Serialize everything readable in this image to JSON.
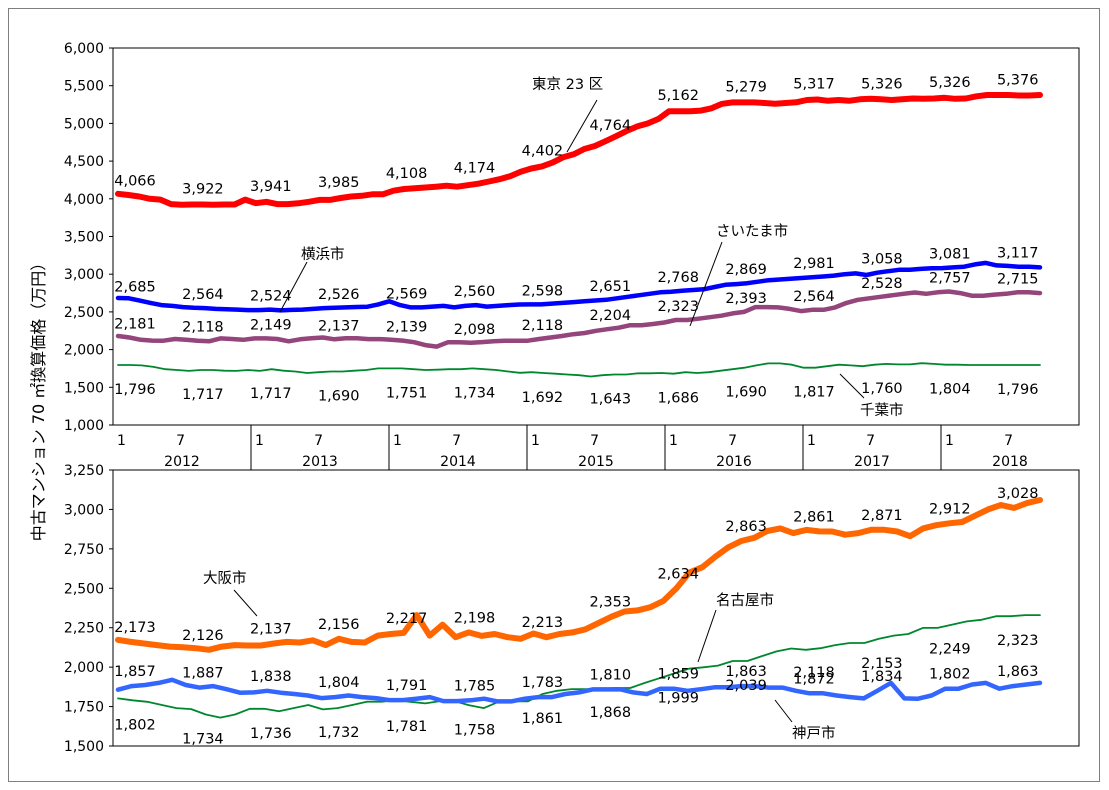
{
  "chart_data": [
    {
      "type": "line",
      "ylabel": "中古マンション 70 ㎡換算価格（万円）",
      "ylim": [
        1000,
        6000
      ],
      "y_ticks": [
        "1,000",
        "1,500",
        "2,000",
        "2,500",
        "3,000",
        "3,500",
        "4,000",
        "4,500",
        "5,000",
        "5,500",
        "6,000"
      ],
      "series": [
        {
          "name": "東京 23 区",
          "color": "#ff0000",
          "width": 6,
          "values": [
            4066,
            4050,
            4030,
            4000,
            3990,
            3930,
            3922,
            3925,
            3925,
            3922,
            3925,
            3925,
            3990,
            3941,
            3960,
            3930,
            3930,
            3940,
            3960,
            3985,
            3985,
            4010,
            4030,
            4040,
            4060,
            4060,
            4108,
            4130,
            4140,
            4150,
            4160,
            4174,
            4160,
            4180,
            4200,
            4230,
            4260,
            4300,
            4360,
            4402,
            4430,
            4480,
            4550,
            4590,
            4660,
            4700,
            4764,
            4830,
            4900,
            4960,
            5000,
            5060,
            5162,
            5162,
            5162,
            5170,
            5200,
            5260,
            5279,
            5279,
            5279,
            5270,
            5260,
            5270,
            5280,
            5310,
            5317,
            5300,
            5310,
            5300,
            5320,
            5326,
            5320,
            5310,
            5320,
            5330,
            5326,
            5330,
            5340,
            5326,
            5330,
            5360,
            5376,
            5376,
            5376,
            5370,
            5370,
            5376
          ]
        },
        {
          "name": "横浜市",
          "color": "#0000ff",
          "width": 4.5,
          "values": [
            2685,
            2680,
            2650,
            2620,
            2590,
            2580,
            2564,
            2555,
            2550,
            2540,
            2535,
            2530,
            2524,
            2524,
            2530,
            2520,
            2526,
            2530,
            2540,
            2550,
            2555,
            2560,
            2565,
            2569,
            2600,
            2640,
            2590,
            2560,
            2560,
            2570,
            2580,
            2560,
            2580,
            2590,
            2570,
            2580,
            2590,
            2598,
            2600,
            2600,
            2610,
            2620,
            2630,
            2640,
            2651,
            2660,
            2680,
            2700,
            2720,
            2740,
            2760,
            2768,
            2780,
            2790,
            2800,
            2830,
            2860,
            2869,
            2880,
            2900,
            2920,
            2930,
            2940,
            2950,
            2960,
            2970,
            2981,
            3000,
            3010,
            2990,
            3020,
            3040,
            3058,
            3060,
            3070,
            3080,
            3081,
            3090,
            3100,
            3130,
            3150,
            3117,
            3110,
            3100,
            3100,
            3090
          ]
        },
        {
          "name": "さいたま市",
          "color": "#93457c",
          "width": 4.5,
          "values": [
            2181,
            2160,
            2130,
            2120,
            2118,
            2140,
            2130,
            2118,
            2110,
            2149,
            2140,
            2130,
            2149,
            2149,
            2140,
            2110,
            2137,
            2150,
            2160,
            2137,
            2150,
            2150,
            2139,
            2139,
            2130,
            2120,
            2098,
            2060,
            2040,
            2098,
            2098,
            2090,
            2100,
            2110,
            2118,
            2118,
            2118,
            2140,
            2160,
            2180,
            2204,
            2220,
            2250,
            2270,
            2290,
            2323,
            2323,
            2340,
            2360,
            2393,
            2393,
            2410,
            2430,
            2450,
            2480,
            2500,
            2564,
            2564,
            2560,
            2540,
            2510,
            2528,
            2528,
            2560,
            2620,
            2660,
            2680,
            2700,
            2720,
            2740,
            2757,
            2740,
            2760,
            2770,
            2750,
            2715,
            2715,
            2730,
            2740,
            2760,
            2760,
            2750
          ]
        },
        {
          "name": "千葉市",
          "color": "#00872e",
          "width": 1.8,
          "values": [
            1796,
            1796,
            1790,
            1770,
            1740,
            1730,
            1717,
            1730,
            1730,
            1720,
            1717,
            1730,
            1717,
            1740,
            1720,
            1710,
            1690,
            1700,
            1710,
            1710,
            1720,
            1730,
            1751,
            1751,
            1751,
            1740,
            1730,
            1734,
            1740,
            1740,
            1750,
            1740,
            1730,
            1710,
            1692,
            1700,
            1690,
            1680,
            1670,
            1660,
            1643,
            1660,
            1670,
            1670,
            1686,
            1686,
            1690,
            1680,
            1700,
            1690,
            1700,
            1720,
            1740,
            1760,
            1790,
            1817,
            1817,
            1800,
            1760,
            1760,
            1780,
            1800,
            1790,
            1780,
            1800,
            1810,
            1804,
            1804,
            1820,
            1810,
            1800,
            1800,
            1796,
            1796,
            1796,
            1796,
            1796,
            1796,
            1796
          ]
        }
      ],
      "data_labels": [
        {
          "series": "東京 23 区",
          "labels": [
            "4,066",
            "3,922",
            "3,941",
            "3,985",
            "4,108",
            "4,174",
            "4,402",
            "4,764",
            "5,162",
            "5,279",
            "5,317",
            "5,326",
            "5,326",
            "5,376"
          ]
        },
        {
          "series": "横浜市",
          "labels": [
            "2,685",
            "2,564",
            "2,524",
            "2,526",
            "2,569",
            "2,560",
            "2,598",
            "2,651",
            "2,768",
            "2,869",
            "2,981",
            "3,058",
            "3,081",
            "3,117"
          ]
        },
        {
          "series": "さいたま市",
          "labels": [
            "2,181",
            "2,118",
            "2,149",
            "2,137",
            "2,139",
            "2,098",
            "2,118",
            "2,204",
            "2,323",
            "2,393",
            "2,564",
            "2,528",
            "2,757",
            "2,715"
          ]
        },
        {
          "series": "千葉市",
          "labels": [
            "1,796",
            "1,717",
            "1,717",
            "1,690",
            "1,751",
            "1,734",
            "1,692",
            "1,643",
            "1,686",
            "1,690",
            "1,817",
            "1,760",
            "1,804",
            "1,796"
          ]
        }
      ]
    },
    {
      "type": "line",
      "ylim": [
        1500,
        3250
      ],
      "y_ticks": [
        "1,500",
        "1,750",
        "2,000",
        "2,250",
        "2,500",
        "2,750",
        "3,000",
        "3,250"
      ],
      "series": [
        {
          "name": "大阪市",
          "color": "#ff6600",
          "width": 6,
          "values": [
            2173,
            2160,
            2150,
            2140,
            2130,
            2126,
            2120,
            2110,
            2130,
            2140,
            2137,
            2137,
            2150,
            2160,
            2156,
            2170,
            2140,
            2180,
            2160,
            2156,
            2200,
            2210,
            2217,
            2330,
            2200,
            2270,
            2190,
            2220,
            2198,
            2210,
            2190,
            2180,
            2213,
            2190,
            2210,
            2220,
            2240,
            2280,
            2320,
            2353,
            2360,
            2380,
            2420,
            2500,
            2600,
            2634,
            2700,
            2760,
            2800,
            2820,
            2863,
            2880,
            2850,
            2870,
            2861,
            2860,
            2840,
            2850,
            2871,
            2871,
            2860,
            2830,
            2880,
            2900,
            2912,
            2920,
            2960,
            3000,
            3028,
            3010,
            3040,
            3060
          ]
        },
        {
          "name": "名古屋市",
          "color": "#00872e",
          "width": 1.8,
          "values": [
            1802,
            1790,
            1780,
            1760,
            1740,
            1734,
            1700,
            1680,
            1700,
            1736,
            1736,
            1720,
            1740,
            1760,
            1732,
            1740,
            1760,
            1781,
            1781,
            1790,
            1780,
            1770,
            1785,
            1785,
            1758,
            1740,
            1780,
            1783,
            1783,
            1830,
            1850,
            1861,
            1861,
            1860,
            1868,
            1868,
            1900,
            1930,
            1960,
            1990,
            1999,
            2010,
            2039,
            2039,
            2070,
            2100,
            2118,
            2110,
            2120,
            2140,
            2153,
            2153,
            2180,
            2200,
            2210,
            2249,
            2249,
            2270,
            2290,
            2300,
            2323,
            2323,
            2330,
            2330
          ]
        },
        {
          "name": "神戸市",
          "color": "#3366ff",
          "width": 4.5,
          "values": [
            1857,
            1880,
            1887,
            1900,
            1920,
            1887,
            1870,
            1880,
            1860,
            1838,
            1840,
            1850,
            1838,
            1830,
            1820,
            1804,
            1810,
            1820,
            1810,
            1804,
            1791,
            1791,
            1800,
            1810,
            1785,
            1785,
            1790,
            1800,
            1783,
            1783,
            1800,
            1810,
            1810,
            1830,
            1840,
            1859,
            1859,
            1860,
            1840,
            1830,
            1863,
            1863,
            1850,
            1860,
            1872,
            1872,
            1880,
            1880,
            1870,
            1870,
            1850,
            1834,
            1834,
            1820,
            1810,
            1802,
            1850,
            1900,
            1802,
            1800,
            1820,
            1863,
            1863,
            1890,
            1900,
            1863,
            1880,
            1890,
            1900
          ]
        }
      ],
      "data_labels": [
        {
          "series": "大阪市",
          "labels": [
            "2,173",
            "2,126",
            "2,137",
            "2,156",
            "2,217",
            "2,198",
            "2,213",
            "2,353",
            "2,634",
            "2,863",
            "2,861",
            "2,871",
            "2,912",
            "3,028"
          ]
        },
        {
          "series": "名古屋市",
          "labels": [
            "1,802",
            "1,734",
            "1,736",
            "1,732",
            "1,781",
            "1,758",
            "1,861",
            "1,868",
            "1,999",
            "2,039",
            "2,118",
            "2,153",
            "2,249",
            "2,323"
          ]
        },
        {
          "series": "神戸市",
          "labels": [
            "1,857",
            "1,887",
            "1,838",
            "1,804",
            "1,791",
            "1,785",
            "1,783",
            "1,810",
            "1,859",
            "1,863",
            "1,872",
            "1,834",
            "1,802",
            "1,863"
          ]
        }
      ]
    }
  ],
  "x_axis": {
    "month_labels": [
      "1",
      "7"
    ],
    "years": [
      "2012",
      "2013",
      "2014",
      "2015",
      "2016",
      "2017",
      "2018"
    ]
  },
  "callouts": {
    "tokyo": "東京 23 区",
    "yokohama": "横浜市",
    "saitama": "さいたま市",
    "chiba": "千葉市",
    "osaka": "大阪市",
    "nagoya": "名古屋市",
    "kobe": "神戸市"
  }
}
